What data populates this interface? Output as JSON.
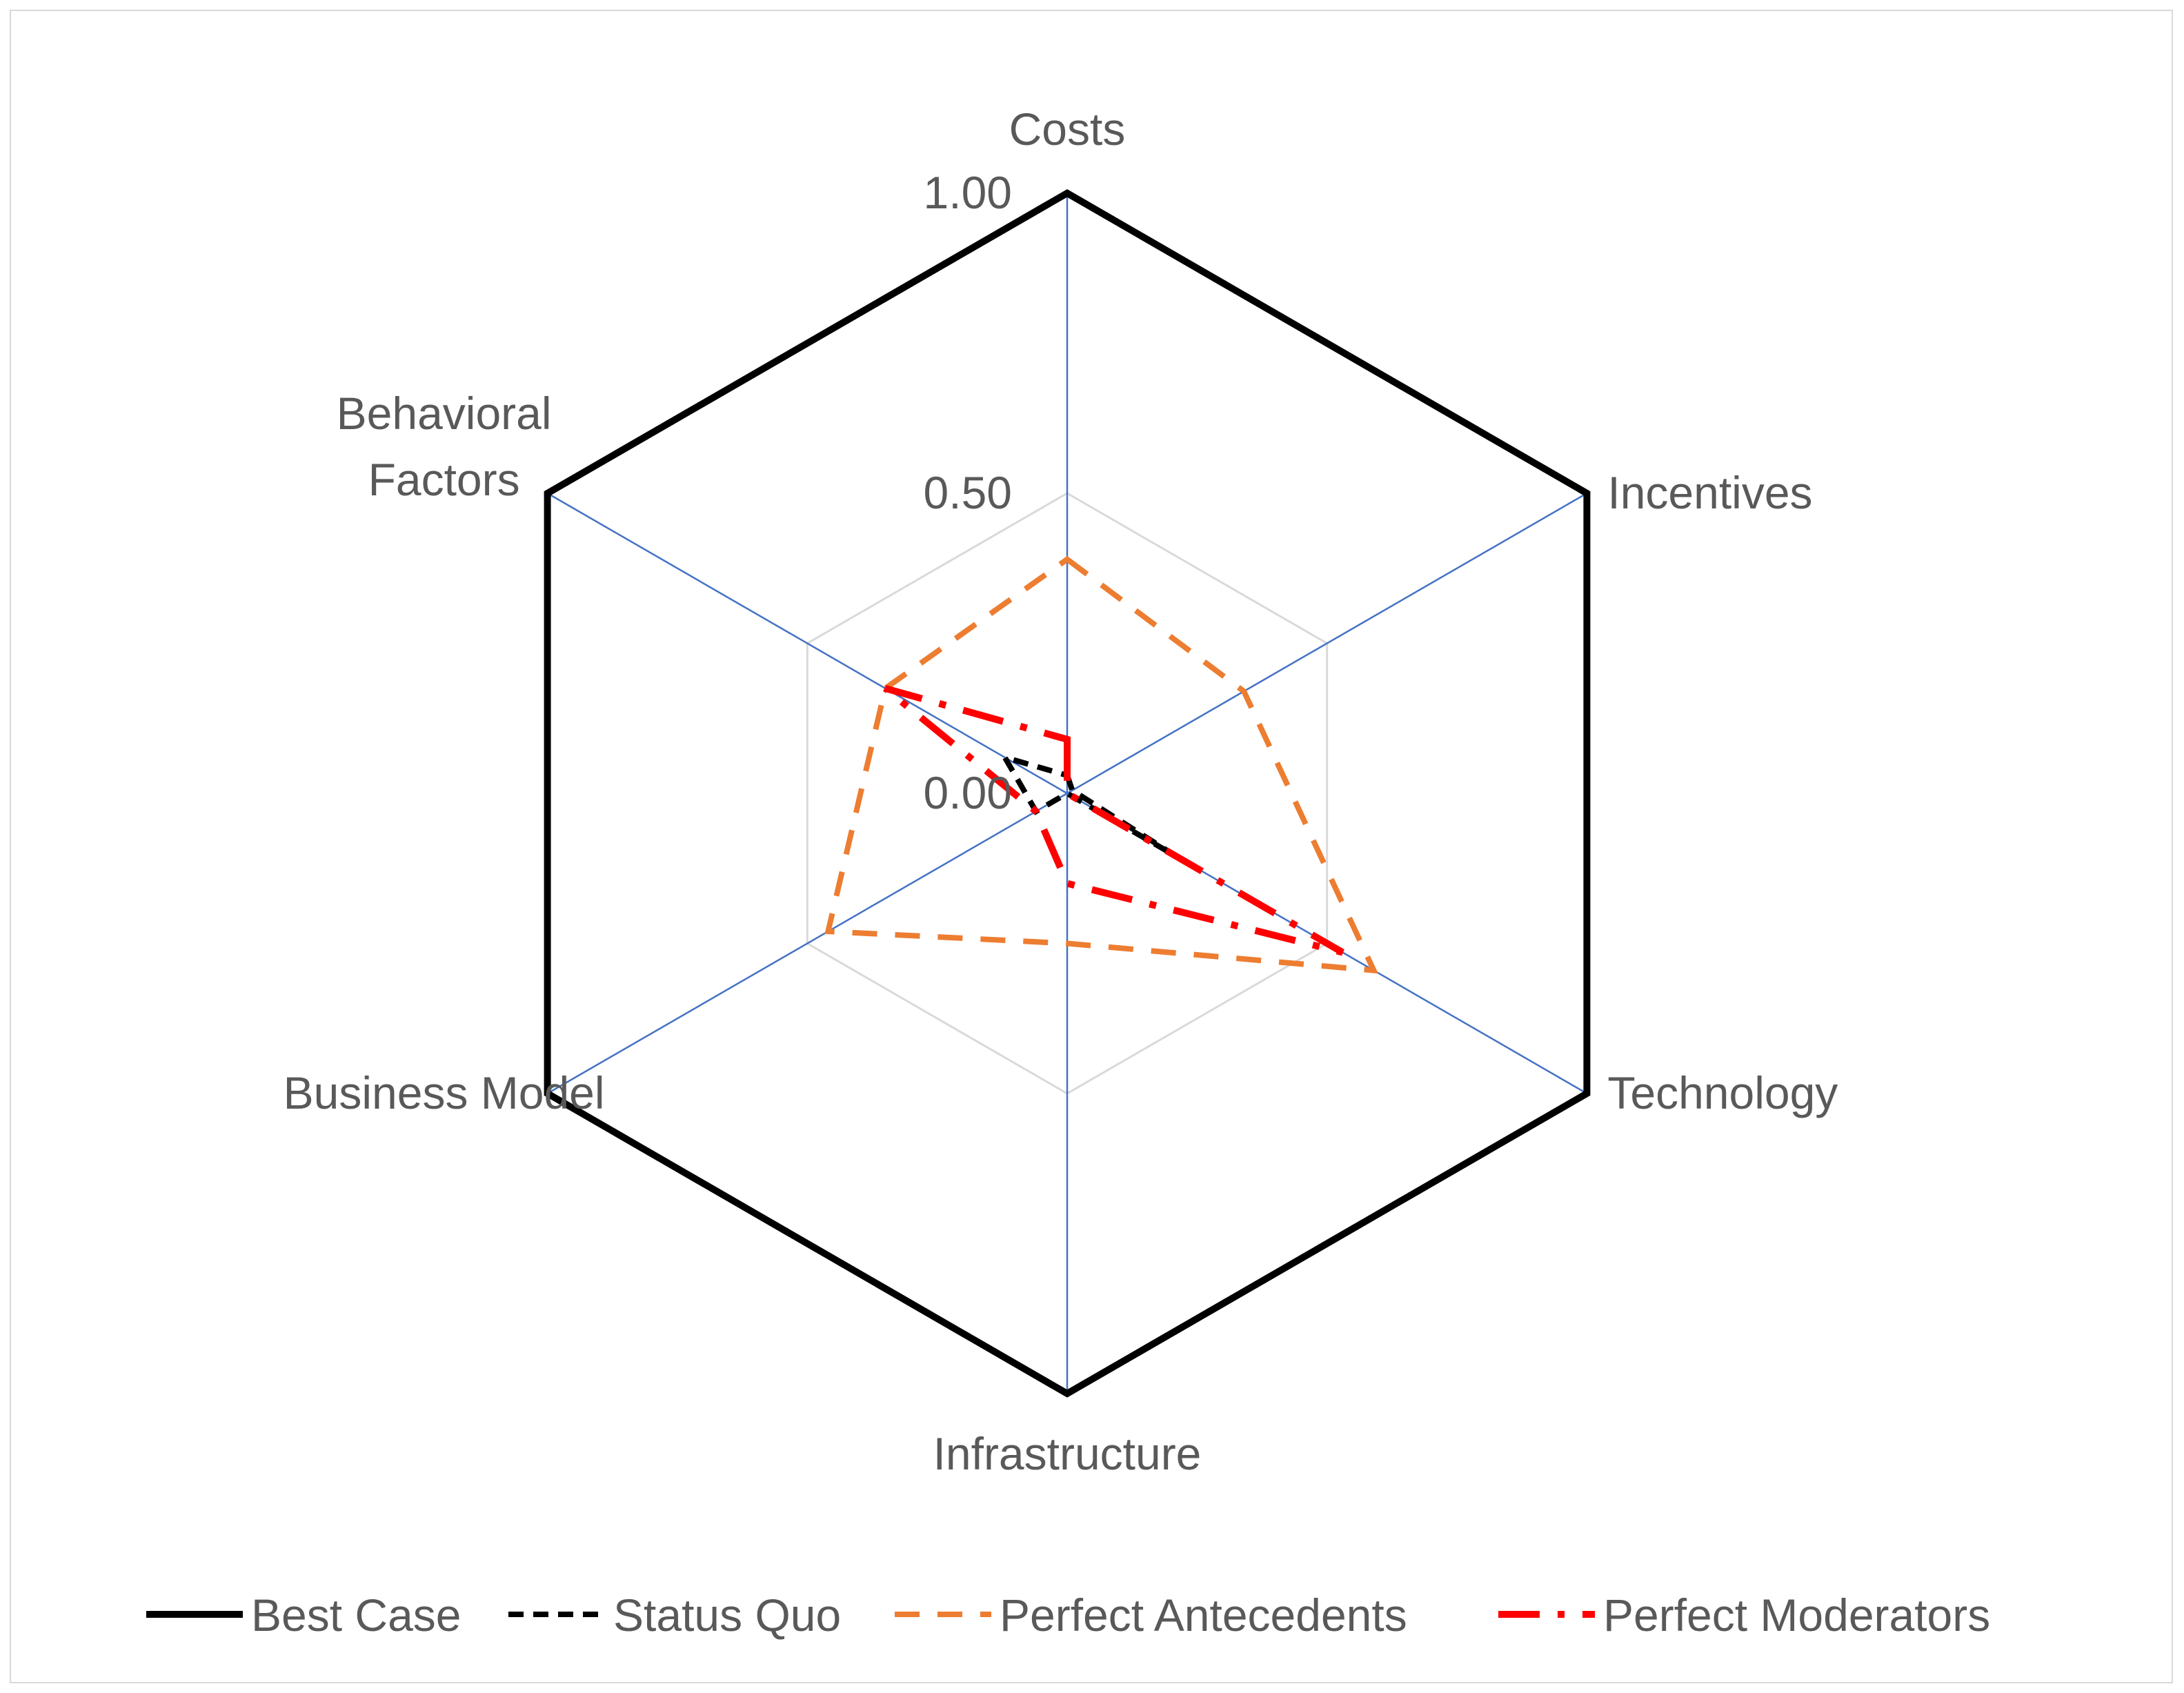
{
  "chart_data": {
    "type": "radar",
    "axes": [
      "Costs",
      "Incentives",
      "Technology",
      "Infrastructure",
      "Business Model",
      "Behavioral Factors"
    ],
    "axis_label_lines": [
      [
        "Costs"
      ],
      [
        "Incentives"
      ],
      [
        "Technology"
      ],
      [
        "Infrastructure"
      ],
      [
        "Business Model"
      ],
      [
        "Behavioral",
        "Factors"
      ]
    ],
    "ticks": [
      "0.00",
      "0.50",
      "1.00"
    ],
    "tick_values": [
      0,
      0.5,
      1
    ],
    "range": [
      0,
      1
    ],
    "grid": true,
    "legend_position": "bottom",
    "series": [
      {
        "name": "Best Case",
        "values": [
          1.0,
          1.0,
          1.0,
          1.0,
          1.0,
          1.0
        ],
        "color": "#000000",
        "dash": "solid"
      },
      {
        "name": "Status Quo",
        "values": [
          0.03,
          0.01,
          0.21,
          0.0,
          0.06,
          0.12
        ],
        "color": "#000000",
        "dash": "dash"
      },
      {
        "name": "Perfect Antecedents",
        "values": [
          0.39,
          0.34,
          0.59,
          0.25,
          0.46,
          0.35
        ],
        "color": "#ED7D31",
        "dash": "longdash"
      },
      {
        "name": "Perfect Moderators",
        "values": [
          0.09,
          0.0,
          0.53,
          0.15,
          0.06,
          0.35
        ],
        "color": "#FF0000",
        "dash": "dashdot"
      }
    ]
  }
}
